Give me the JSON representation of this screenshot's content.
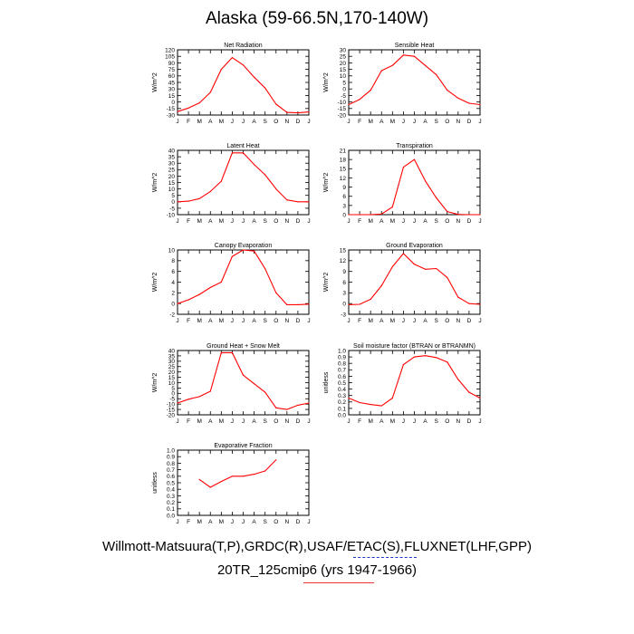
{
  "title": "Alaska (59-66.5N,170-140W)",
  "footer": {
    "line1": "Willmott-Matsuura(T,P),GRDC(R),USAF/ETAC(S),FLUXNET(LHF,GPP)",
    "line2": "20TR_125cmip6 (yrs 1947-1966)"
  },
  "colors": {
    "series": "#ff0000",
    "axis": "#000000"
  },
  "months": [
    "J",
    "F",
    "M",
    "A",
    "M",
    "J",
    "J",
    "A",
    "S",
    "O",
    "N",
    "D",
    "J"
  ],
  "chart_data": [
    {
      "type": "line",
      "title": "Net Radiation",
      "ylabel": "W/m^2",
      "ylim": [
        -30,
        120
      ],
      "yticks": [
        -30,
        -15,
        0,
        15,
        30,
        45,
        60,
        75,
        90,
        105,
        120
      ],
      "series": [
        {
          "name": "20TR_125cmip6",
          "values": [
            -22,
            -14,
            -2,
            22,
            75,
            102,
            85,
            57,
            32,
            -5,
            -24,
            -25,
            -23
          ]
        }
      ]
    },
    {
      "type": "line",
      "title": "Sensible Heat",
      "ylabel": "W/m^2",
      "ylim": [
        -20,
        30
      ],
      "yticks": [
        -20,
        -15,
        -10,
        -5,
        0,
        5,
        10,
        15,
        20,
        25,
        30
      ],
      "series": [
        {
          "name": "20TR_125cmip6",
          "values": [
            -12,
            -8,
            -1,
            14,
            18,
            26,
            25,
            18,
            11,
            -1,
            -7,
            -11,
            -12
          ]
        }
      ]
    },
    {
      "type": "line",
      "title": "Latent Heat",
      "ylabel": "W/m^2",
      "ylim": [
        -10,
        40
      ],
      "yticks": [
        -10,
        -5,
        0,
        5,
        10,
        15,
        20,
        25,
        30,
        35,
        40
      ],
      "series": [
        {
          "name": "20TR_125cmip6",
          "values": [
            0,
            0.5,
            2.5,
            8,
            16,
            38,
            38,
            29,
            21,
            10,
            1.5,
            0,
            0
          ]
        }
      ]
    },
    {
      "type": "line",
      "title": "Transpiration",
      "ylabel": "W/m^2",
      "ylim": [
        0,
        21
      ],
      "yticks": [
        0,
        3,
        6,
        9,
        12,
        15,
        18,
        21
      ],
      "series": [
        {
          "name": "20TR_125cmip6",
          "values": [
            0,
            0,
            0,
            0.2,
            2.5,
            15.5,
            18,
            11,
            5.5,
            1,
            0.1,
            0,
            0
          ]
        }
      ]
    },
    {
      "type": "line",
      "title": "Canopy Evaporation",
      "ylabel": "W/m^2",
      "ylim": [
        -2,
        10
      ],
      "yticks": [
        -2,
        0,
        2,
        4,
        6,
        8,
        10
      ],
      "series": [
        {
          "name": "20TR_125cmip6",
          "values": [
            0,
            0.7,
            1.7,
            3,
            4,
            8.8,
            10,
            9.8,
            6.5,
            2,
            -0.2,
            -0.2,
            -0.1
          ]
        }
      ]
    },
    {
      "type": "line",
      "title": "Ground Evaporation",
      "ylabel": "W/m^2",
      "ylim": [
        -3,
        15
      ],
      "yticks": [
        -3,
        0,
        3,
        6,
        9,
        12,
        15
      ],
      "series": [
        {
          "name": "20TR_125cmip6",
          "values": [
            -0.3,
            -0.2,
            1.2,
            5,
            10.3,
            14,
            11,
            9.6,
            9.8,
            7.3,
            1.8,
            0,
            -0.2
          ]
        }
      ]
    },
    {
      "type": "line",
      "title": "Ground Heat + Snow Melt",
      "ylabel": "W/m^2",
      "ylim": [
        -20,
        40
      ],
      "yticks": [
        -20,
        -15,
        -10,
        -5,
        0,
        5,
        10,
        15,
        20,
        25,
        30,
        35,
        40
      ],
      "series": [
        {
          "name": "20TR_125cmip6",
          "values": [
            -9,
            -5.5,
            -3,
            2,
            38,
            38,
            17,
            9,
            1,
            -13.5,
            -15,
            -11,
            -9
          ]
        }
      ]
    },
    {
      "type": "line",
      "title": "Soil moisture factor (BTRAN or BTRANMN)",
      "ylabel": "unitless",
      "ylim": [
        0,
        1
      ],
      "yticks": [
        "0.0",
        "0.1",
        "0.2",
        "0.3",
        "0.4",
        "0.5",
        "0.6",
        "0.7",
        "0.8",
        "0.9",
        "1.0"
      ],
      "series": [
        {
          "name": "20TR_125cmip6",
          "values": [
            0.26,
            0.19,
            0.16,
            0.14,
            0.26,
            0.78,
            0.9,
            0.92,
            0.89,
            0.82,
            0.55,
            0.35,
            0.26
          ]
        }
      ]
    },
    {
      "type": "line",
      "title": "Evaporative Fraction",
      "ylabel": "unitless",
      "ylim": [
        0,
        1
      ],
      "yticks": [
        "0.0",
        "0.1",
        "0.2",
        "0.3",
        "0.4",
        "0.5",
        "0.6",
        "0.7",
        "0.8",
        "0.9",
        "1.0"
      ],
      "series": [
        {
          "name": "20TR_125cmip6",
          "values": [
            null,
            null,
            0.55,
            0.43,
            0.52,
            0.6,
            0.6,
            0.63,
            0.68,
            0.85,
            null,
            null,
            null
          ]
        }
      ]
    }
  ]
}
